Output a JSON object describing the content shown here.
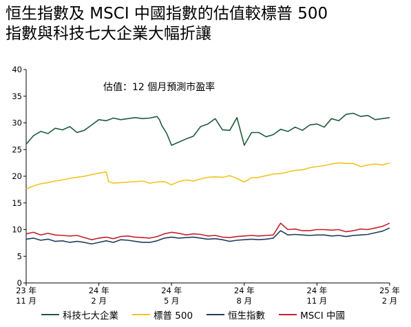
{
  "chart_data": {
    "type": "line",
    "title_line1": "恒生指數及 MSCI 中國指數的估值較標普 500",
    "title_line2": "指數與科技七大企業大幅折讓",
    "annotation": "估值：12 個月預測市盈率",
    "ylim": [
      0,
      40
    ],
    "yticks": [
      "0",
      "5",
      "10",
      "15",
      "20",
      "25",
      "30",
      "35",
      "40"
    ],
    "xlim": [
      0,
      15
    ],
    "xticks": [
      {
        "x": 0,
        "line1": "23 年",
        "line2": "11 月"
      },
      {
        "x": 3,
        "line1": "24 年",
        "line2": "2 月"
      },
      {
        "x": 6,
        "line1": "24 年",
        "line2": "5 月"
      },
      {
        "x": 9,
        "line1": "24 年",
        "line2": "8 月"
      },
      {
        "x": 12,
        "line1": "24 年",
        "line2": "11 月"
      },
      {
        "x": 15,
        "line1": "25 年",
        "line2": "2 月"
      }
    ],
    "series": [
      {
        "name": "科技七大企業",
        "color": "#1d5a3a",
        "x": [
          0,
          0.3,
          0.6,
          0.9,
          1.2,
          1.5,
          1.8,
          2.1,
          2.4,
          2.7,
          3.0,
          3.3,
          3.6,
          3.9,
          4.2,
          4.5,
          4.8,
          5.1,
          5.4,
          5.5,
          5.6,
          5.8,
          6.0,
          6.3,
          6.6,
          6.9,
          7.2,
          7.5,
          7.8,
          8.1,
          8.4,
          8.7,
          9.0,
          9.3,
          9.6,
          9.9,
          10.2,
          10.5,
          10.8,
          11.1,
          11.4,
          11.7,
          12.0,
          12.3,
          12.6,
          12.9,
          13.2,
          13.5,
          13.8,
          14.1,
          14.4,
          14.7,
          15.0
        ],
        "values": [
          26.0,
          27.6,
          28.4,
          28.0,
          29.0,
          28.7,
          29.3,
          28.2,
          28.6,
          29.6,
          30.6,
          30.4,
          30.9,
          30.6,
          30.8,
          31.0,
          30.8,
          30.9,
          31.2,
          30.6,
          29.5,
          28.0,
          25.8,
          26.4,
          27.0,
          27.5,
          29.3,
          29.8,
          30.8,
          28.7,
          28.6,
          31.0,
          25.8,
          28.2,
          28.2,
          27.4,
          27.8,
          28.8,
          28.4,
          29.2,
          28.6,
          29.6,
          29.8,
          29.2,
          30.8,
          30.4,
          31.6,
          31.8,
          31.2,
          31.4,
          30.6,
          30.8,
          31.0
        ]
      },
      {
        "name": "標普 500",
        "color": "#f2c31f",
        "x": [
          0,
          0.3,
          0.6,
          0.9,
          1.2,
          1.5,
          1.8,
          2.1,
          2.4,
          2.7,
          3.0,
          3.3,
          3.4,
          3.6,
          3.9,
          4.2,
          4.5,
          4.8,
          5.1,
          5.4,
          5.7,
          6.0,
          6.3,
          6.6,
          6.9,
          7.2,
          7.5,
          7.8,
          8.1,
          8.4,
          8.7,
          9.0,
          9.3,
          9.6,
          9.9,
          10.2,
          10.5,
          10.8,
          11.1,
          11.4,
          11.7,
          12.0,
          12.3,
          12.6,
          12.9,
          13.2,
          13.5,
          13.8,
          14.1,
          14.4,
          14.7,
          15.0
        ],
        "values": [
          17.6,
          18.2,
          18.6,
          18.8,
          19.1,
          19.3,
          19.6,
          19.8,
          20.0,
          20.3,
          20.6,
          20.8,
          19.0,
          18.7,
          18.8,
          18.9,
          19.0,
          19.1,
          18.7,
          18.9,
          19.0,
          18.4,
          19.0,
          19.3,
          19.1,
          19.5,
          19.8,
          19.9,
          19.8,
          20.1,
          19.6,
          18.9,
          19.7,
          19.8,
          20.1,
          20.4,
          20.5,
          20.8,
          21.1,
          21.2,
          21.6,
          21.8,
          22.0,
          22.3,
          22.5,
          22.4,
          22.4,
          21.8,
          22.1,
          22.3,
          22.1,
          22.5
        ]
      },
      {
        "name": "恒生指數",
        "color": "#1f3b5c",
        "x": [
          0,
          0.3,
          0.6,
          0.9,
          1.2,
          1.5,
          1.8,
          2.1,
          2.4,
          2.7,
          3.0,
          3.3,
          3.6,
          3.9,
          4.2,
          4.5,
          4.8,
          5.1,
          5.4,
          5.7,
          6.0,
          6.3,
          6.6,
          6.9,
          7.2,
          7.5,
          7.8,
          8.1,
          8.4,
          8.7,
          9.0,
          9.3,
          9.6,
          9.9,
          10.2,
          10.5,
          10.8,
          11.1,
          11.4,
          11.7,
          12.0,
          12.3,
          12.6,
          12.9,
          13.2,
          13.5,
          13.8,
          14.1,
          14.4,
          14.7,
          15.0
        ],
        "values": [
          8.2,
          8.4,
          8.0,
          8.2,
          7.8,
          7.9,
          7.6,
          7.8,
          7.6,
          7.3,
          7.6,
          7.9,
          7.6,
          8.1,
          8.0,
          7.8,
          7.6,
          7.6,
          7.9,
          8.4,
          8.6,
          8.4,
          8.5,
          8.6,
          8.4,
          8.2,
          8.3,
          8.1,
          7.8,
          8.0,
          8.1,
          8.2,
          8.1,
          8.2,
          8.4,
          9.8,
          9.0,
          9.1,
          9.0,
          8.9,
          9.0,
          9.0,
          8.8,
          8.9,
          8.7,
          8.9,
          9.0,
          9.1,
          9.4,
          9.7,
          10.3
        ]
      },
      {
        "name": "MSCI 中國",
        "color": "#c41f28",
        "x": [
          0,
          0.3,
          0.6,
          0.9,
          1.2,
          1.5,
          1.8,
          2.1,
          2.4,
          2.7,
          3.0,
          3.3,
          3.6,
          3.9,
          4.2,
          4.5,
          4.8,
          5.1,
          5.4,
          5.7,
          6.0,
          6.3,
          6.6,
          6.9,
          7.2,
          7.5,
          7.8,
          8.1,
          8.4,
          8.7,
          9.0,
          9.3,
          9.6,
          9.9,
          10.2,
          10.5,
          10.8,
          11.1,
          11.4,
          11.7,
          12.0,
          12.3,
          12.6,
          12.9,
          13.2,
          13.5,
          13.8,
          14.1,
          14.4,
          14.7,
          15.0
        ],
        "values": [
          9.2,
          9.5,
          9.0,
          9.3,
          9.0,
          8.9,
          8.8,
          8.9,
          8.5,
          8.1,
          8.4,
          8.6,
          8.3,
          8.7,
          8.8,
          8.6,
          8.5,
          8.4,
          8.7,
          9.2,
          9.5,
          9.3,
          9.0,
          9.2,
          9.1,
          8.8,
          8.9,
          8.6,
          8.5,
          8.7,
          8.8,
          8.9,
          8.8,
          8.9,
          9.0,
          11.2,
          10.0,
          10.1,
          9.8,
          9.8,
          10.0,
          10.0,
          9.9,
          10.0,
          9.6,
          9.8,
          10.1,
          10.0,
          10.3,
          10.6,
          11.2
        ]
      }
    ],
    "legend_placement": "bottom",
    "grid": false
  }
}
